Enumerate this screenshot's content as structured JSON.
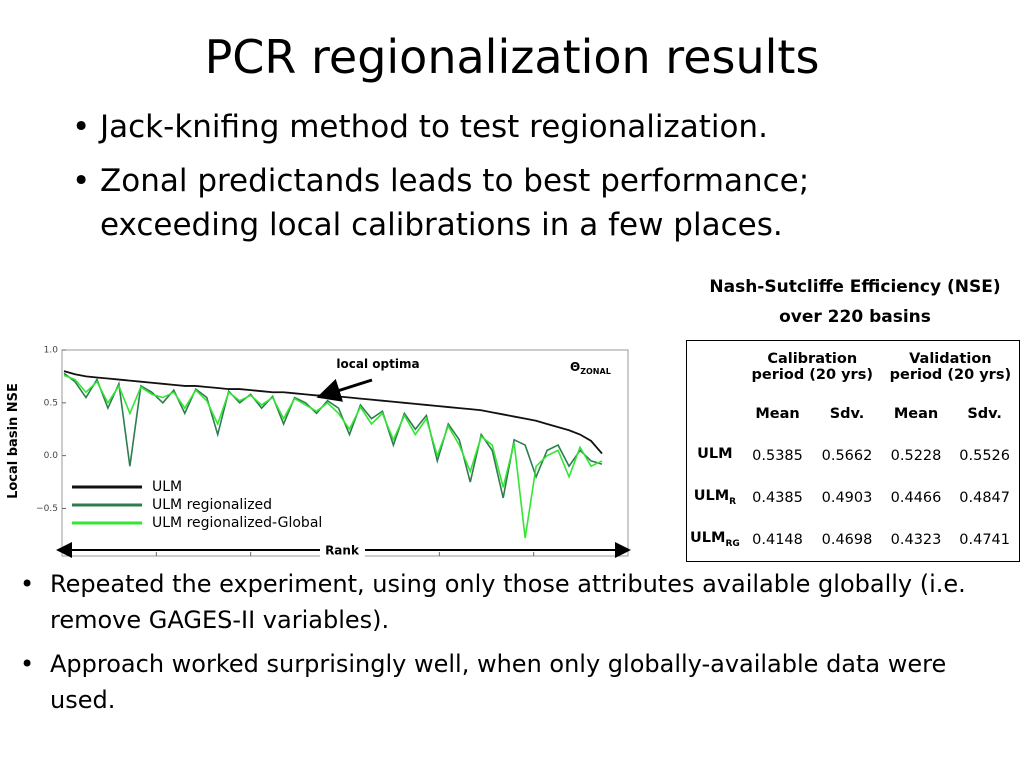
{
  "slide": {
    "title": "PCR regionalization results",
    "bullets_top": [
      "Jack-knifing method to test regionalization.",
      "Zonal predictands leads to best performance; exceeding local calibrations in a few places."
    ],
    "bullets_bottom": [
      "Repeated the experiment, using only those attributes available globally (i.e. remove GAGES-II variables).",
      "Approach worked surprisingly well, when only globally-available data were used."
    ]
  },
  "chart_data": {
    "type": "line",
    "y_label": "Local basin NSE",
    "x_label": "Rank",
    "annotations": {
      "local_optima": "local optima",
      "theta": {
        "symbol": "Θ",
        "subscript": "ZONAL"
      }
    },
    "ylim": [
      -0.95,
      1.0
    ],
    "yticks": [
      {
        "value": 1.0,
        "label": "1.0"
      },
      {
        "value": 0.5,
        "label": "0.5"
      },
      {
        "value": 0.0,
        "label": "0.0"
      },
      {
        "value": -0.5,
        "label": "−0.5"
      }
    ],
    "series": [
      {
        "name": "ULM",
        "color": "#111111",
        "values": [
          0.8,
          0.77,
          0.75,
          0.74,
          0.73,
          0.72,
          0.71,
          0.7,
          0.69,
          0.68,
          0.67,
          0.66,
          0.66,
          0.65,
          0.64,
          0.63,
          0.63,
          0.62,
          0.61,
          0.6,
          0.6,
          0.59,
          0.58,
          0.57,
          0.57,
          0.56,
          0.55,
          0.54,
          0.53,
          0.52,
          0.51,
          0.5,
          0.49,
          0.48,
          0.47,
          0.46,
          0.45,
          0.44,
          0.43,
          0.41,
          0.39,
          0.37,
          0.35,
          0.33,
          0.3,
          0.27,
          0.24,
          0.2,
          0.14,
          0.02
        ]
      },
      {
        "name": "ULM regionalized",
        "color": "#2e7d4f",
        "values": [
          0.78,
          0.7,
          0.55,
          0.72,
          0.45,
          0.68,
          -0.1,
          0.66,
          0.6,
          0.5,
          0.62,
          0.4,
          0.63,
          0.55,
          0.2,
          0.61,
          0.5,
          0.58,
          0.45,
          0.56,
          0.3,
          0.55,
          0.5,
          0.4,
          0.52,
          0.45,
          0.2,
          0.48,
          0.35,
          0.42,
          0.1,
          0.4,
          0.25,
          0.38,
          -0.05,
          0.3,
          0.15,
          -0.25,
          0.2,
          0.05,
          -0.4,
          0.15,
          0.1,
          -0.2,
          0.05,
          0.1,
          -0.1,
          0.05,
          -0.05,
          -0.08
        ]
      },
      {
        "name": "ULM regionalized-Global",
        "color": "#33e633",
        "values": [
          0.76,
          0.72,
          0.6,
          0.7,
          0.5,
          0.66,
          0.4,
          0.65,
          0.58,
          0.55,
          0.6,
          0.45,
          0.62,
          0.52,
          0.3,
          0.6,
          0.52,
          0.57,
          0.48,
          0.55,
          0.35,
          0.54,
          0.48,
          0.42,
          0.5,
          0.4,
          0.25,
          0.46,
          0.3,
          0.4,
          0.15,
          0.38,
          0.2,
          0.35,
          0.0,
          0.28,
          0.1,
          -0.15,
          0.18,
          0.1,
          -0.3,
          0.12,
          -0.78,
          -0.1,
          0.0,
          0.05,
          -0.2,
          0.08,
          -0.1,
          -0.05
        ]
      }
    ]
  },
  "table": {
    "caption": [
      "Nash-Sutcliffe Efficiency (NSE)",
      "over 220 basins"
    ],
    "groups": [
      "Calibration period (20 yrs)",
      "Validation period (20 yrs)"
    ],
    "subheaders": [
      "Mean",
      "Sdv.",
      "Mean",
      "Sdv."
    ],
    "rows": [
      {
        "label": {
          "base": "ULM",
          "sub": ""
        },
        "cells": [
          "0.5385",
          "0.5662",
          "0.5228",
          "0.5526"
        ]
      },
      {
        "label": {
          "base": "ULM",
          "sub": "R"
        },
        "cells": [
          "0.4385",
          "0.4903",
          "0.4466",
          "0.4847"
        ]
      },
      {
        "label": {
          "base": "ULM",
          "sub": "RG"
        },
        "cells": [
          "0.4148",
          "0.4698",
          "0.4323",
          "0.4741"
        ]
      }
    ]
  }
}
